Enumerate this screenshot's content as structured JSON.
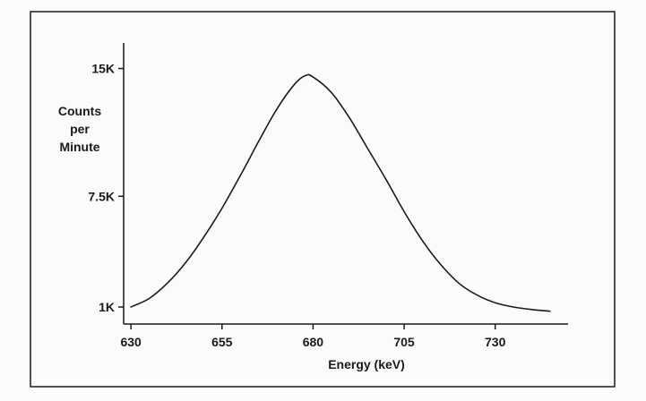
{
  "chart_data": {
    "type": "line",
    "title": "",
    "xlabel": "Energy (keV)",
    "ylabel_lines": [
      "Counts",
      "per",
      "Minute"
    ],
    "xlim": [
      628,
      750
    ],
    "ylim": [
      0,
      16500
    ],
    "x_ticks": [
      630,
      655,
      680,
      705,
      730
    ],
    "y_ticks": [
      {
        "value": 1000,
        "label": "1K"
      },
      {
        "value": 7500,
        "label": "7.5K"
      },
      {
        "value": 15000,
        "label": "15K"
      }
    ],
    "grid": false,
    "legend": "none",
    "line_color": "#1a1a1a",
    "series": [
      {
        "x": [
          630,
          635,
          640,
          645,
          650,
          655,
          660,
          665,
          670,
          675,
          678,
          680,
          685,
          690,
          695,
          700,
          705,
          710,
          715,
          720,
          725,
          730,
          735,
          740,
          745
        ],
        "y": [
          1000,
          1500,
          2400,
          3600,
          5100,
          6800,
          8700,
          10700,
          12600,
          14100,
          14600,
          14500,
          13600,
          12100,
          10300,
          8500,
          6600,
          4900,
          3500,
          2400,
          1700,
          1250,
          1000,
          850,
          750
        ]
      }
    ]
  }
}
